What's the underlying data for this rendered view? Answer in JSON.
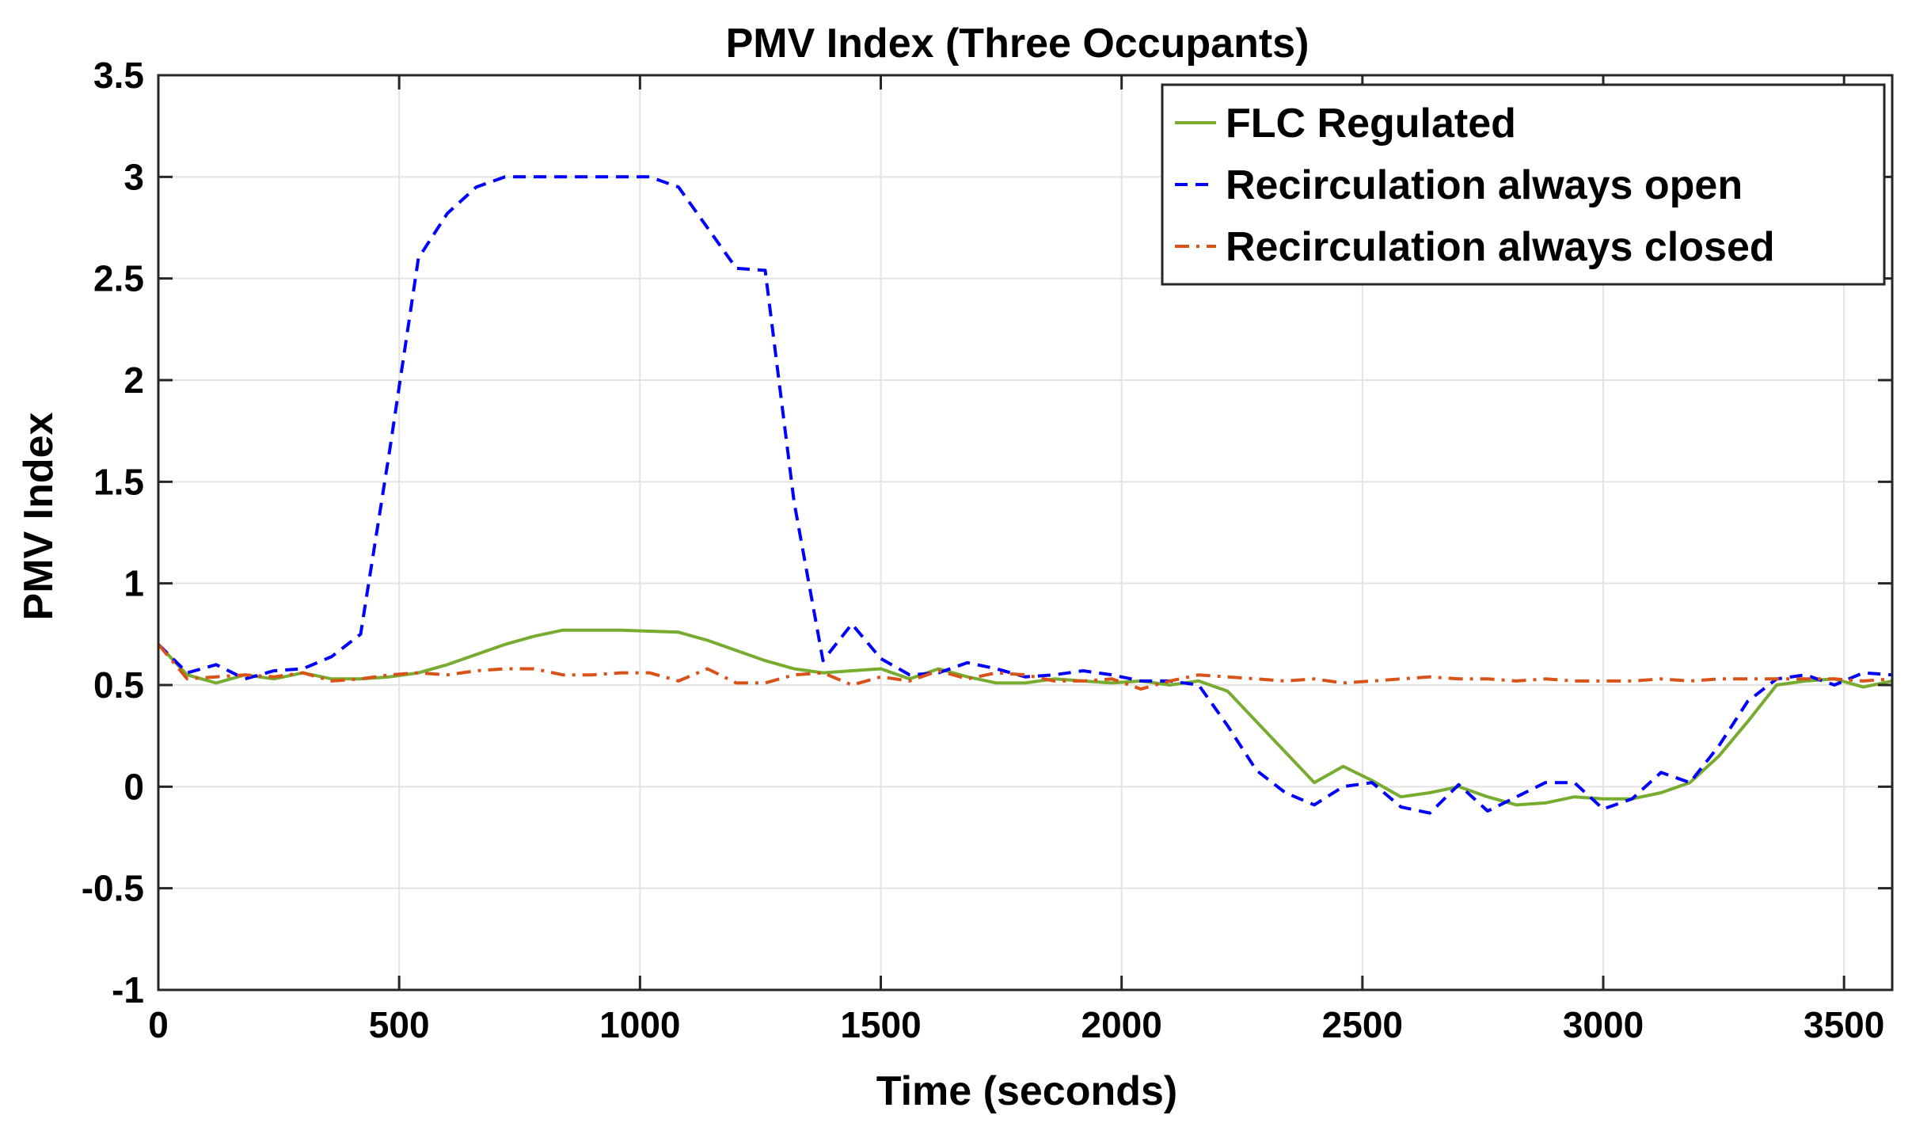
{
  "chart_data": {
    "type": "line",
    "title": "PMV Index (Three Occupants)",
    "xlabel": "Time (seconds)",
    "ylabel": "PMV Index",
    "xlim": [
      0,
      3600
    ],
    "ylim": [
      -1,
      3.5
    ],
    "xticks": [
      0,
      500,
      1000,
      1500,
      2000,
      2500,
      3000,
      3500
    ],
    "xtick_labels": [
      "0",
      "500",
      "1000",
      "1500",
      "2000",
      "2500",
      "3000",
      "3500"
    ],
    "yticks": [
      -1,
      -0.5,
      0,
      0.5,
      1,
      1.5,
      2,
      2.5,
      3,
      3.5
    ],
    "ytick_labels": [
      "-1",
      "-0.5",
      "0",
      "0.5",
      "1",
      "1.5",
      "2",
      "2.5",
      "3",
      "3.5"
    ],
    "grid": true,
    "legend_position": "top-right",
    "series": [
      {
        "name": "FLC Regulated",
        "color": "#77AC30",
        "style": "solid",
        "x": [
          0,
          60,
          120,
          180,
          240,
          300,
          360,
          420,
          480,
          540,
          600,
          660,
          720,
          780,
          840,
          900,
          960,
          1020,
          1080,
          1140,
          1200,
          1260,
          1320,
          1380,
          1440,
          1500,
          1560,
          1620,
          1680,
          1740,
          1800,
          1860,
          1920,
          1980,
          2040,
          2100,
          2160,
          2220,
          2280,
          2340,
          2400,
          2460,
          2520,
          2580,
          2640,
          2700,
          2760,
          2820,
          2880,
          2940,
          3000,
          3060,
          3120,
          3180,
          3240,
          3300,
          3360,
          3420,
          3480,
          3540,
          3600
        ],
        "values": [
          0.7,
          0.55,
          0.51,
          0.55,
          0.53,
          0.56,
          0.53,
          0.53,
          0.54,
          0.56,
          0.6,
          0.65,
          0.7,
          0.74,
          0.77,
          0.77,
          0.77,
          0.765,
          0.76,
          0.72,
          0.67,
          0.62,
          0.58,
          0.56,
          0.57,
          0.58,
          0.53,
          0.58,
          0.54,
          0.51,
          0.51,
          0.53,
          0.52,
          0.51,
          0.52,
          0.5,
          0.52,
          0.47,
          0.32,
          0.17,
          0.02,
          0.1,
          0.03,
          -0.05,
          -0.03,
          0.0,
          -0.05,
          -0.09,
          -0.08,
          -0.05,
          -0.06,
          -0.06,
          -0.03,
          0.02,
          0.15,
          0.32,
          0.5,
          0.52,
          0.53,
          0.49,
          0.52
        ]
      },
      {
        "name": "Recirculation always open",
        "color": "#0000FF",
        "style": "dashed",
        "x": [
          0,
          60,
          120,
          180,
          240,
          300,
          360,
          420,
          480,
          540,
          600,
          660,
          720,
          780,
          840,
          900,
          960,
          1020,
          1080,
          1140,
          1200,
          1260,
          1320,
          1380,
          1440,
          1500,
          1560,
          1620,
          1680,
          1740,
          1800,
          1860,
          1920,
          1980,
          2040,
          2100,
          2160,
          2220,
          2280,
          2340,
          2400,
          2460,
          2520,
          2580,
          2640,
          2700,
          2760,
          2820,
          2880,
          2940,
          3000,
          3060,
          3120,
          3180,
          3240,
          3300,
          3360,
          3420,
          3480,
          3540,
          3600
        ],
        "values": [
          0.7,
          0.56,
          0.6,
          0.53,
          0.57,
          0.58,
          0.64,
          0.75,
          1.65,
          2.6,
          2.82,
          2.95,
          3.0,
          3.0,
          3.0,
          3.0,
          3.0,
          3.0,
          2.95,
          2.75,
          2.55,
          2.54,
          1.4,
          0.62,
          0.8,
          0.63,
          0.55,
          0.56,
          0.61,
          0.58,
          0.54,
          0.55,
          0.57,
          0.55,
          0.52,
          0.52,
          0.5,
          0.3,
          0.08,
          -0.03,
          -0.09,
          0.0,
          0.02,
          -0.1,
          -0.13,
          0.01,
          -0.12,
          -0.05,
          0.02,
          0.02,
          -0.11,
          -0.06,
          0.07,
          0.02,
          0.2,
          0.42,
          0.53,
          0.55,
          0.5,
          0.56,
          0.55
        ]
      },
      {
        "name": "Recirculation always closed",
        "color": "#D95319",
        "style": "dashdot",
        "x": [
          0,
          60,
          120,
          180,
          240,
          300,
          360,
          420,
          480,
          540,
          600,
          660,
          720,
          780,
          840,
          900,
          960,
          1020,
          1080,
          1140,
          1200,
          1260,
          1320,
          1380,
          1440,
          1500,
          1560,
          1620,
          1680,
          1740,
          1800,
          1860,
          1920,
          1980,
          2040,
          2100,
          2160,
          2220,
          2280,
          2340,
          2400,
          2460,
          2520,
          2580,
          2640,
          2700,
          2760,
          2820,
          2880,
          2940,
          3000,
          3060,
          3120,
          3180,
          3240,
          3300,
          3360,
          3420,
          3480,
          3540,
          3600
        ],
        "values": [
          0.7,
          0.53,
          0.54,
          0.55,
          0.54,
          0.56,
          0.52,
          0.53,
          0.55,
          0.56,
          0.55,
          0.57,
          0.58,
          0.58,
          0.55,
          0.55,
          0.56,
          0.56,
          0.52,
          0.58,
          0.51,
          0.51,
          0.55,
          0.56,
          0.5,
          0.54,
          0.52,
          0.57,
          0.53,
          0.56,
          0.55,
          0.52,
          0.52,
          0.53,
          0.48,
          0.52,
          0.55,
          0.54,
          0.53,
          0.52,
          0.53,
          0.51,
          0.52,
          0.53,
          0.54,
          0.53,
          0.53,
          0.52,
          0.53,
          0.52,
          0.52,
          0.52,
          0.53,
          0.52,
          0.53,
          0.53,
          0.53,
          0.53,
          0.53,
          0.52,
          0.53
        ]
      }
    ]
  }
}
